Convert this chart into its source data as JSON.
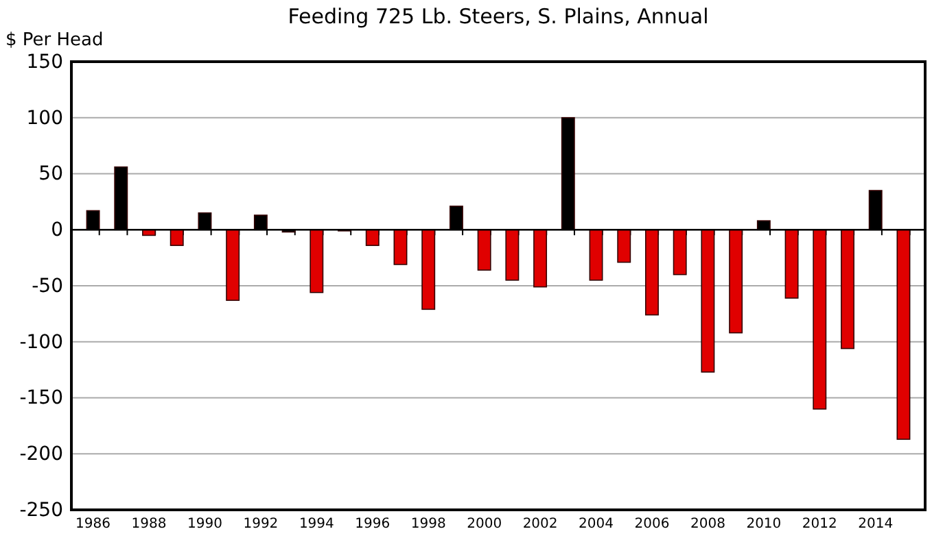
{
  "chart_data": {
    "type": "bar",
    "title": "Feeding 725 Lb. Steers, S. Plains, Annual",
    "ylabel": "$ Per Head",
    "categories": [
      "1986",
      null,
      "1988",
      null,
      "1990",
      null,
      "1992",
      null,
      "1994",
      null,
      "1996",
      null,
      "1998",
      null,
      "2000",
      null,
      "2002",
      null,
      "2004",
      null,
      "2006",
      null,
      "2008",
      null,
      "2010",
      null,
      "2012",
      null,
      "2014",
      null
    ],
    "values": [
      17,
      56,
      -5,
      -14,
      15,
      -63,
      13,
      -2,
      -56,
      -1,
      -14,
      -31,
      -71,
      21,
      -36,
      -45,
      -51,
      100,
      -45,
      -29,
      -76,
      -40,
      -127,
      -92,
      8,
      -61,
      -160,
      -106,
      35,
      -187
    ],
    "colors": [
      "#000000",
      "#000000",
      "#e00000",
      "#e00000",
      "#000000",
      "#e00000",
      "#000000",
      "#000000",
      "#e00000",
      "#000000",
      "#e00000",
      "#e00000",
      "#e00000",
      "#000000",
      "#e00000",
      "#e00000",
      "#e00000",
      "#000000",
      "#e00000",
      "#e00000",
      "#e00000",
      "#e00000",
      "#e00000",
      "#e00000",
      "#000000",
      "#e00000",
      "#e00000",
      "#e00000",
      "#000000",
      "#e00000"
    ],
    "ylim": [
      -250,
      150
    ],
    "yticks": [
      -250,
      -200,
      -150,
      -100,
      -50,
      0,
      50,
      100,
      150
    ],
    "grid": "y"
  }
}
